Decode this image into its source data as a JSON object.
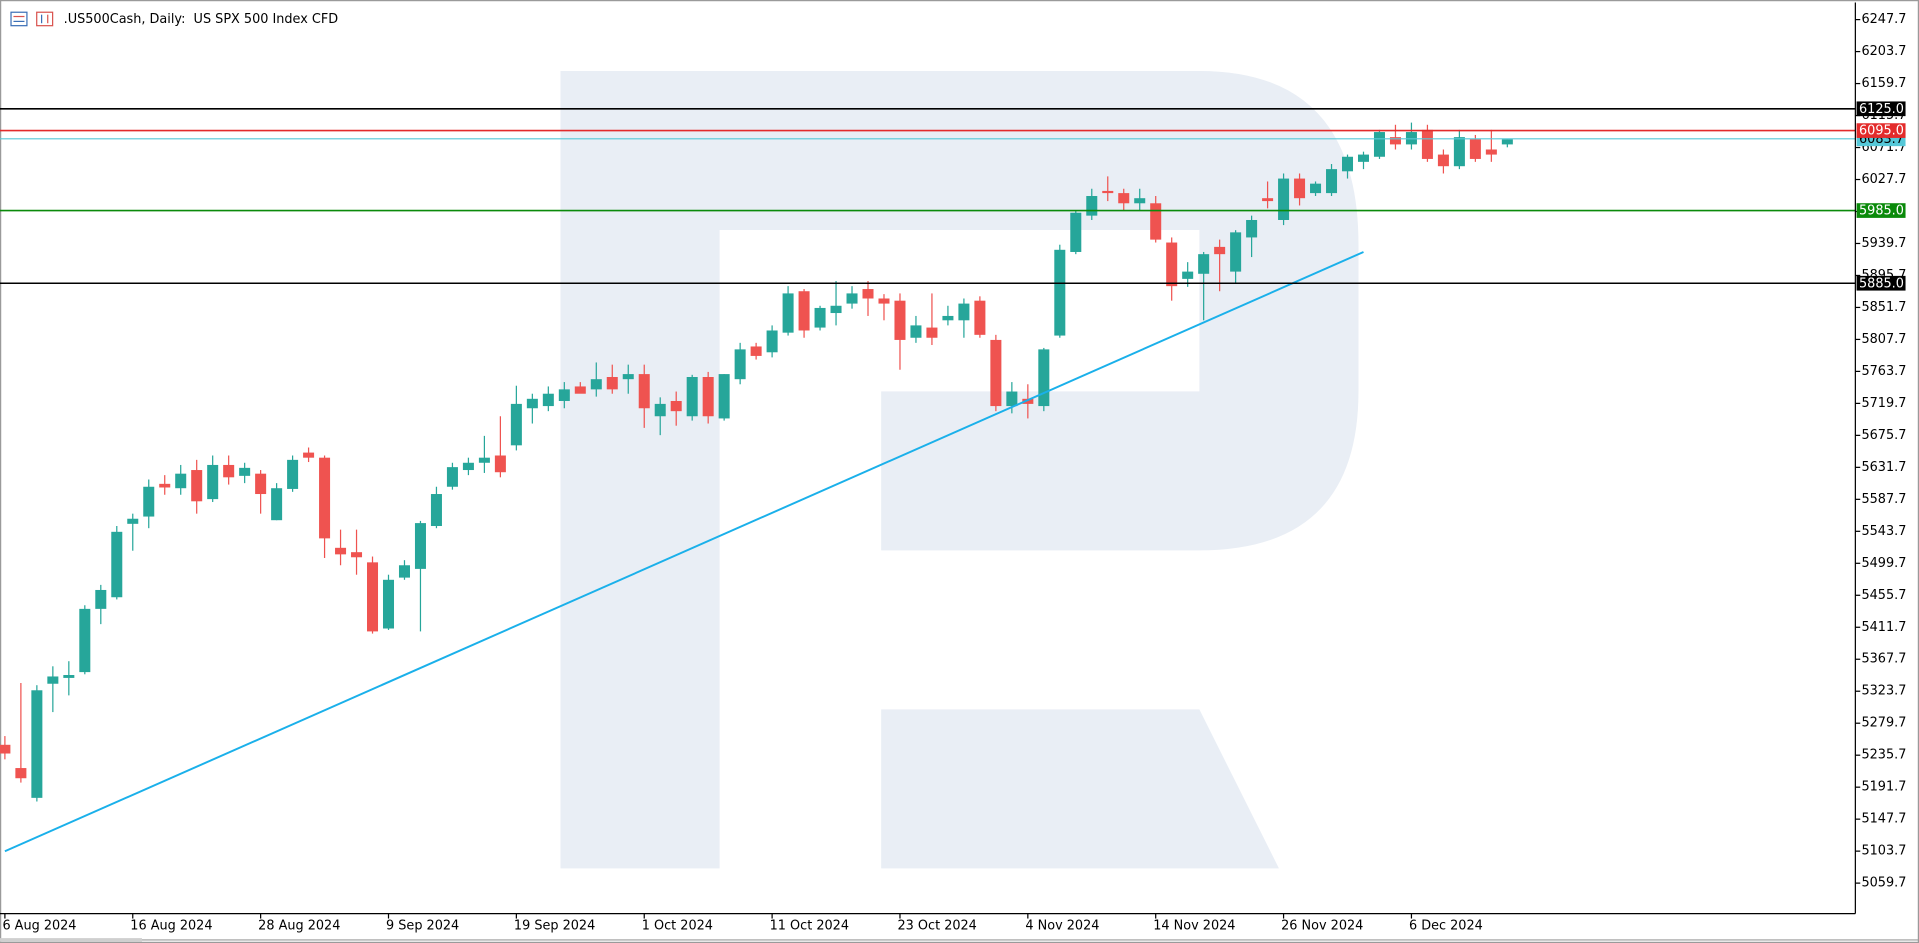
{
  "chart_data": {
    "type": "candlestick",
    "title": ".US500Cash, Daily:  US SPX 500 Index CFD",
    "up_color": "#26a69a",
    "down_color": "#ef5350",
    "categories": [
      "6 Aug 2024",
      null,
      null,
      null,
      null,
      null,
      null,
      null,
      "16 Aug 2024",
      null,
      null,
      null,
      null,
      null,
      null,
      null,
      "28 Aug 2024",
      null,
      null,
      null,
      null,
      null,
      null,
      null,
      "9 Sep 2024",
      null,
      null,
      null,
      null,
      null,
      null,
      null,
      "19 Sep 2024",
      null,
      null,
      null,
      null,
      null,
      null,
      null,
      "1 Oct 2024",
      null,
      null,
      null,
      null,
      null,
      null,
      null,
      "11 Oct 2024",
      null,
      null,
      null,
      null,
      null,
      null,
      null,
      "23 Oct 2024",
      null,
      null,
      null,
      null,
      null,
      null,
      null,
      "4 Nov 2024",
      null,
      null,
      null,
      null,
      null,
      null,
      null,
      "14 Nov 2024",
      null,
      null,
      null,
      null,
      null,
      null,
      null,
      "26 Nov 2024",
      null,
      null,
      null,
      null,
      null,
      null,
      null,
      "6 Dec 2024",
      null,
      null,
      null,
      null,
      null,
      null
    ],
    "open": [
      5250,
      5218,
      5177,
      5334,
      5342,
      5350,
      5437,
      5453,
      5554,
      5564,
      5609,
      5603,
      5628,
      5588,
      5635,
      5620,
      5623,
      5559,
      5602,
      5652,
      5645,
      5521,
      5515,
      5501,
      5410,
      5480,
      5492,
      5551,
      5605,
      5628,
      5638,
      5648,
      5662,
      5713,
      5716,
      5723,
      5743,
      5739,
      5756,
      5753,
      5760,
      5702,
      5723,
      5702,
      5756,
      5699,
      5753,
      5798,
      5790,
      5817,
      5874,
      5824,
      5844,
      5857,
      5877,
      5864,
      5861,
      5810,
      5824,
      5834,
      5834,
      5861,
      5807,
      5716,
      5726,
      5716,
      5813,
      5928,
      5978,
      6012,
      6009,
      5995,
      5995,
      5941,
      5891,
      5898,
      5935,
      5901,
      5948,
      6002,
      5972,
      6029,
      6009,
      6009,
      6039,
      6052,
      6059,
      6086,
      6076,
      6096,
      6062,
      6046,
      6083,
      6069,
      6076
    ],
    "high": [
      5262,
      5335,
      5332,
      5358,
      5365,
      5442,
      5470,
      5551,
      5568,
      5615,
      5621,
      5635,
      5642,
      5648,
      5648,
      5638,
      5628,
      5610,
      5648,
      5659,
      5648,
      5546,
      5546,
      5509,
      5484,
      5504,
      5558,
      5605,
      5638,
      5645,
      5675,
      5702,
      5744,
      5733,
      5743,
      5749,
      5749,
      5776,
      5773,
      5773,
      5773,
      5728,
      5736,
      5759,
      5763,
      5760,
      5803,
      5803,
      5827,
      5881,
      5877,
      5854,
      5888,
      5881,
      5888,
      5870,
      5871,
      5840,
      5871,
      5854,
      5864,
      5867,
      5814,
      5749,
      5746,
      5796,
      5938,
      5985,
      6015,
      6032,
      6015,
      6015,
      6005,
      5948,
      5914,
      5928,
      5945,
      5958,
      5978,
      6025,
      6036,
      6036,
      6025,
      6049,
      6062,
      6066,
      6096,
      6103,
      6106,
      6103,
      6069,
      6096,
      6089,
      6096,
      6083
    ],
    "low": [
      5230,
      5198,
      5172,
      5295,
      5318,
      5347,
      5416,
      5450,
      5517,
      5548,
      5594,
      5594,
      5568,
      5584,
      5608,
      5610,
      5568,
      5559,
      5598,
      5639,
      5507,
      5497,
      5484,
      5403,
      5408,
      5477,
      5406,
      5548,
      5601,
      5621,
      5624,
      5618,
      5655,
      5692,
      5709,
      5713,
      5736,
      5729,
      5733,
      5733,
      5686,
      5676,
      5689,
      5696,
      5692,
      5696,
      5746,
      5780,
      5783,
      5813,
      5810,
      5820,
      5827,
      5850,
      5840,
      5834,
      5766,
      5803,
      5800,
      5827,
      5810,
      5810,
      5709,
      5706,
      5699,
      5709,
      5810,
      5925,
      5972,
      5998,
      5985,
      5985,
      5941,
      5861,
      5880,
      5834,
      5874,
      5884,
      5921,
      5988,
      5965,
      5992,
      6005,
      6005,
      6029,
      6042,
      6056,
      6069,
      6069,
      6052,
      6036,
      6042,
      6052,
      6052,
      6072
    ],
    "close": [
      5238,
      5204,
      5325,
      5344,
      5346,
      5437,
      5463,
      5543,
      5561,
      5605,
      5604,
      5623,
      5585,
      5635,
      5618,
      5631,
      5595,
      5603,
      5642,
      5645,
      5534,
      5512,
      5508,
      5406,
      5477,
      5497,
      5555,
      5595,
      5632,
      5638,
      5645,
      5625,
      5719,
      5726,
      5733,
      5739,
      5733,
      5753,
      5739,
      5760,
      5713,
      5719,
      5709,
      5756,
      5702,
      5760,
      5794,
      5785,
      5820,
      5871,
      5820,
      5851,
      5854,
      5871,
      5864,
      5857,
      5807,
      5827,
      5810,
      5840,
      5857,
      5814,
      5716,
      5736,
      5719,
      5794,
      5931,
      5982,
      6005,
      6009,
      5995,
      6002,
      5945,
      5881,
      5901,
      5925,
      5925,
      5955,
      5972,
      5998,
      6029,
      6002,
      6022,
      6042,
      6059,
      6062,
      6093,
      6076,
      6093,
      6056,
      6046,
      6086,
      6056,
      6062,
      6083
    ],
    "ylim": [
      5017.7,
      6271.3
    ],
    "yticks": [
      6247.7,
      6203.7,
      6159.7,
      6115.7,
      6071.7,
      6027.7,
      5983.7,
      5939.7,
      5895.7,
      5851.7,
      5807.7,
      5763.7,
      5719.7,
      5675.7,
      5631.7,
      5587.7,
      5543.7,
      5499.7,
      5455.7,
      5411.7,
      5367.7,
      5323.7,
      5279.7,
      5235.7,
      5191.7,
      5147.7,
      5103.7,
      5059.7
    ],
    "levels": [
      {
        "value": 6125,
        "label": "6125.0",
        "color": "#000000"
      },
      {
        "value": 6095,
        "label": "6095.0",
        "color": "#e32b2b"
      },
      {
        "value": 5985,
        "label": "5985.0",
        "color": "#0a8a0a"
      },
      {
        "value": 5885,
        "label": "5885.0",
        "color": "#000000"
      }
    ],
    "last_price": 6083.7,
    "last_price_color": "#56c8d8",
    "trendline": {
      "x": [
        0,
        85
      ],
      "values": [
        5103.5,
        5928.0
      ],
      "color": "#1ab0ea"
    }
  }
}
